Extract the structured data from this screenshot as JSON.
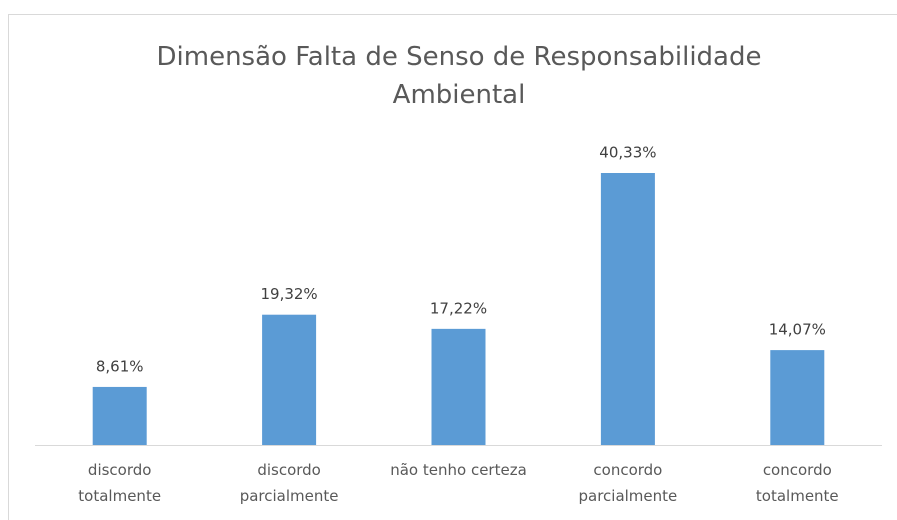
{
  "chart_data": {
    "type": "bar",
    "title": "Dimensão Falta de Senso de Responsabilidade Ambiental",
    "categories": [
      "discordo\ntotalmente",
      "discordo\nparcialmente",
      "não tenho certeza",
      "concordo\nparcialmente",
      "concordo\ntotalmente"
    ],
    "values": [
      8.61,
      19.32,
      17.22,
      40.33,
      14.07
    ],
    "value_labels": [
      "8,61%",
      "19,32%",
      "17,22%",
      "40,33%",
      "14,07%"
    ],
    "color": "#5b9bd5"
  }
}
